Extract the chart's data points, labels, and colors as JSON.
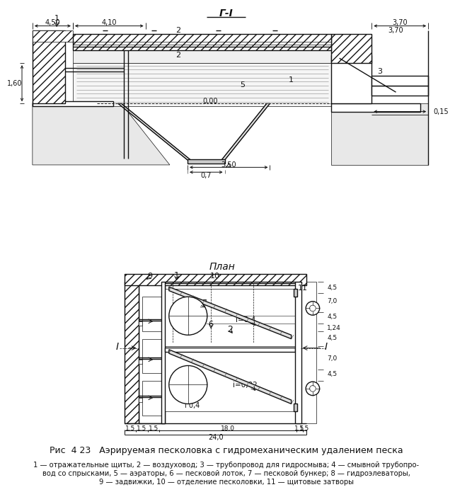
{
  "title_section1": "Г-I",
  "title_section2": "План",
  "fig_caption": "Рис  4 23   Аэрируемая песколовка с гидромеханическим удалением песка",
  "fig_legend_line1": "1 — отражательные щиты, 2 — воздуховод; 3 — трубопровод для гидросмыва; 4 — смывной трубопро-",
  "fig_legend_line2": "вод со спрысками, 5 — аэраторы, 6 — песковой лоток, 7 — песковой бункер; 8 — гидроэлеваторы,",
  "fig_legend_line3": "9 — задвижки, 10 — отделение песколовки, 11 — щитовые затворы",
  "lc": "#111111",
  "wc": "white",
  "gc": "#cccccc"
}
